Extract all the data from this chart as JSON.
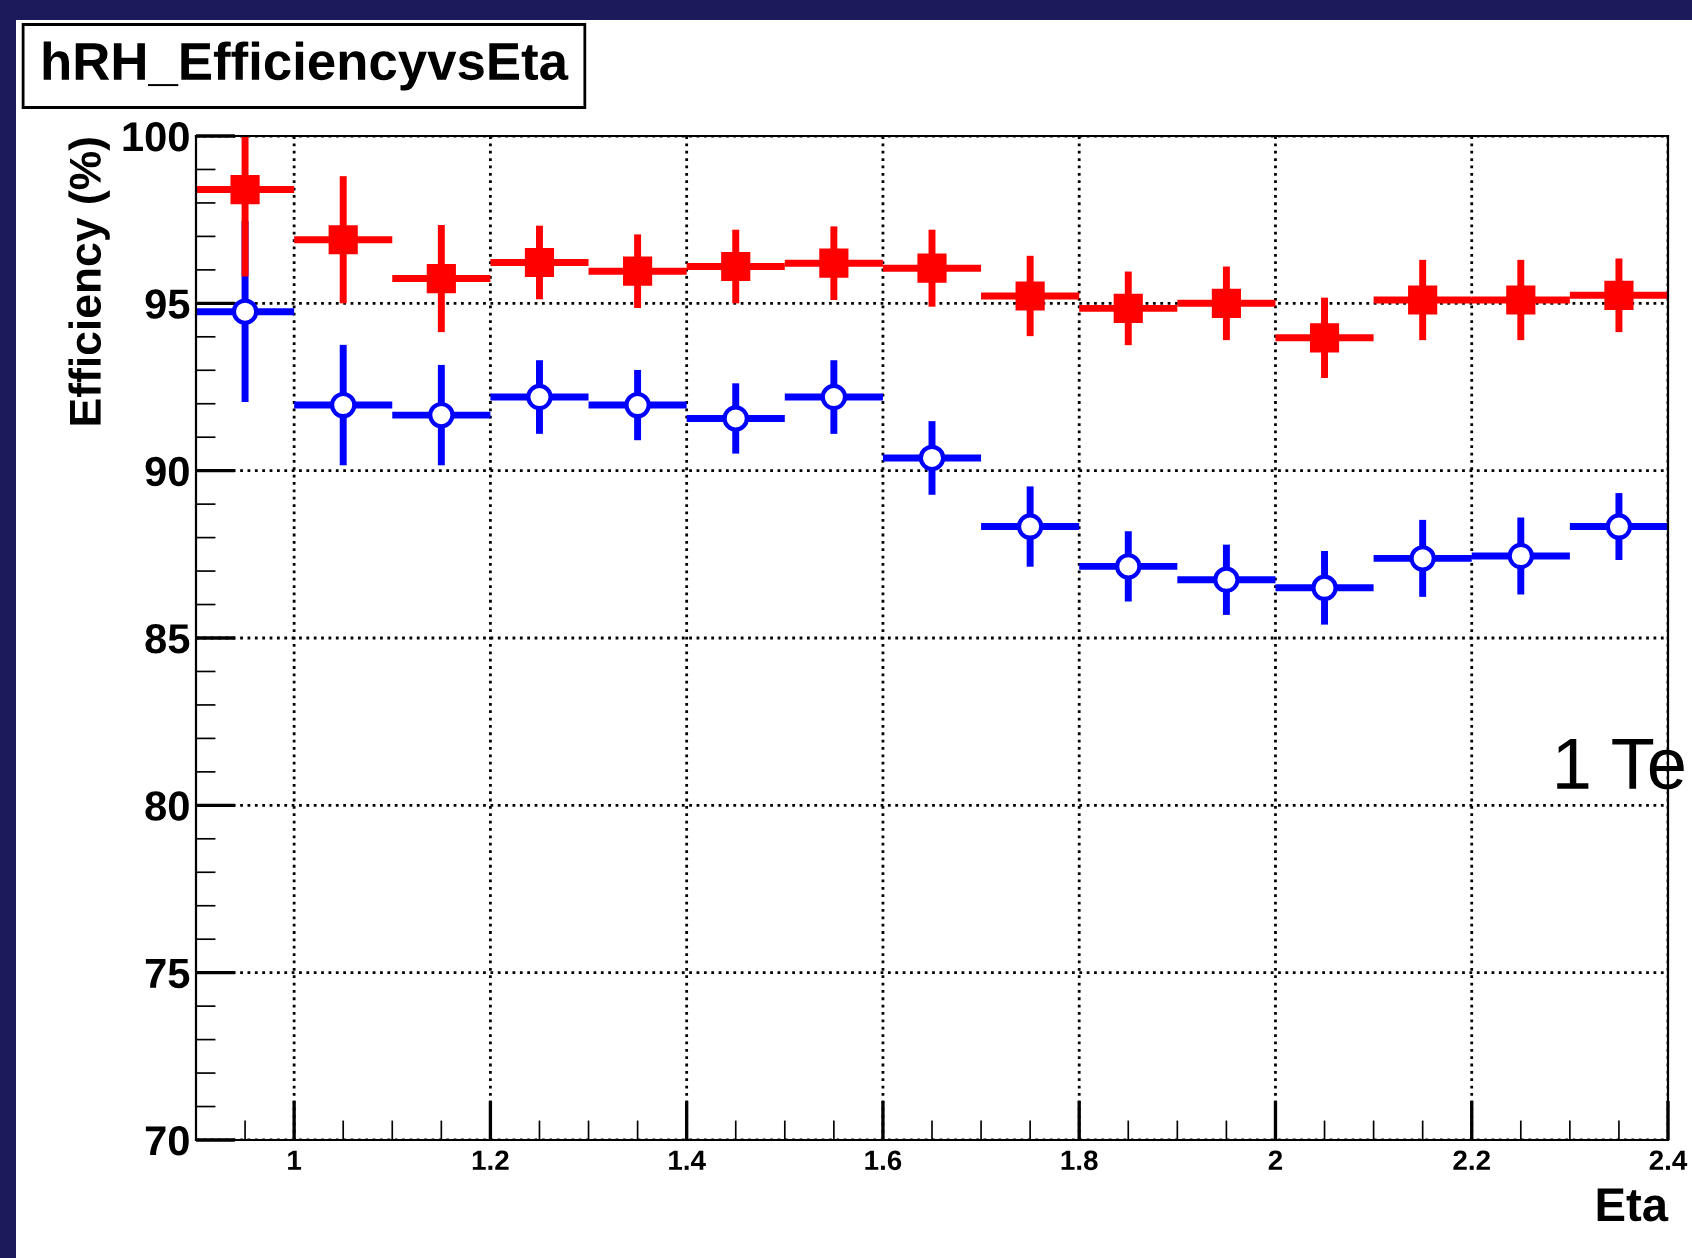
{
  "chart_data": {
    "type": "scatter",
    "title": "hRH_EfficiencyvsEta",
    "xlabel": "Eta",
    "ylabel": "Efficiency (%)",
    "xlim": [
      0.9,
      2.4
    ],
    "xticks": [
      1,
      1.2,
      1.4,
      1.6,
      1.8,
      2,
      2.2,
      2.4
    ],
    "ylim": [
      70,
      100
    ],
    "yticks": [
      70,
      75,
      80,
      85,
      90,
      95,
      100
    ],
    "grid": true,
    "annotations": [
      "1 Te"
    ],
    "series": [
      {
        "color": "#0000ff",
        "marker": "circle",
        "x": [
          0.95,
          1.05,
          1.15,
          1.25,
          1.35,
          1.45,
          1.55,
          1.65,
          1.75,
          1.85,
          1.95,
          2.05,
          2.15,
          2.25,
          2.35
        ],
        "values": [
          94.75,
          91.96,
          91.66,
          92.2,
          91.96,
          91.56,
          92.2,
          90.38,
          88.33,
          87.14,
          86.74,
          86.5,
          87.38,
          87.45,
          88.33
        ],
        "errors": [
          2.7,
          1.8,
          1.5,
          1.1,
          1.05,
          1.05,
          1.1,
          1.1,
          1.2,
          1.05,
          1.05,
          1.1,
          1.15,
          1.15,
          1.0
        ],
        "xerrors": [
          0.05,
          0.05,
          0.05,
          0.05,
          0.05,
          0.05,
          0.05,
          0.05,
          0.05,
          0.05,
          0.05,
          0.05,
          0.05,
          0.05,
          0.05
        ]
      },
      {
        "color": "#ff0000",
        "marker": "square",
        "x": [
          0.95,
          1.05,
          1.15,
          1.25,
          1.35,
          1.45,
          1.55,
          1.65,
          1.75,
          1.85,
          1.95,
          2.05,
          2.15,
          2.25,
          2.35
        ],
        "values": [
          98.4,
          96.9,
          95.74,
          96.22,
          95.96,
          96.1,
          96.2,
          96.05,
          95.22,
          94.85,
          95.0,
          93.97,
          95.1,
          95.1,
          95.24
        ],
        "errors": [
          [
            95.8,
            100
          ],
          1.9,
          1.6,
          1.1,
          1.1,
          1.1,
          1.1,
          1.15,
          1.2,
          1.1,
          1.1,
          1.2,
          1.2,
          1.2,
          1.1
        ],
        "xerrors": [
          0.05,
          0.05,
          0.05,
          0.05,
          0.05,
          0.05,
          0.05,
          0.05,
          0.05,
          0.05,
          0.05,
          0.05,
          0.05,
          0.05,
          0.05
        ]
      }
    ]
  }
}
